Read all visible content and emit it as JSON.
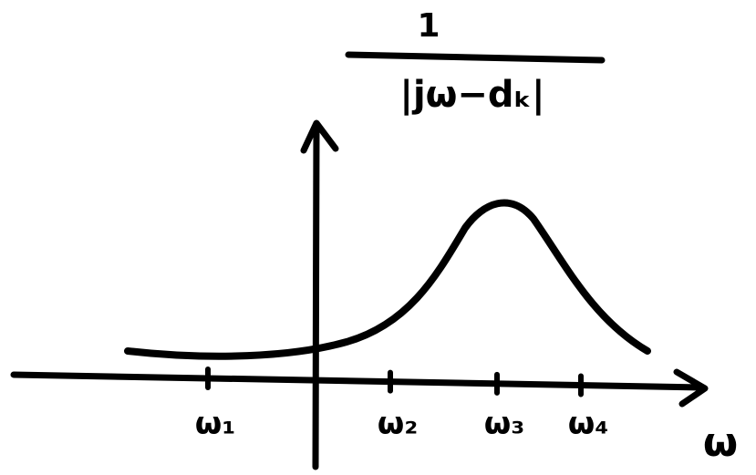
{
  "formula": {
    "numerator": "1",
    "denominator": "|jω−dₖ|"
  },
  "axis": {
    "x_label": "ω"
  },
  "ticks": [
    "ω₁",
    "ω₂",
    "ω₃",
    "ω₄"
  ]
}
